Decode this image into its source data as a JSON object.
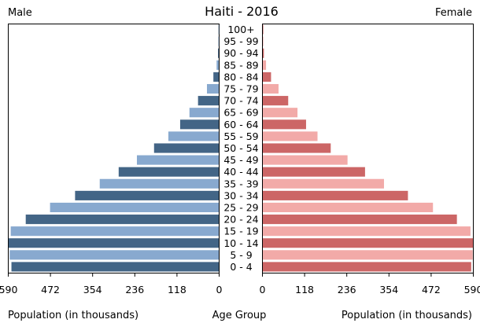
{
  "chart_data": {
    "type": "bar",
    "orientation": "horizontal-pyramid",
    "title": "Haiti - 2016",
    "left_header": "Male",
    "right_header": "Female",
    "xlabel_left": "Population (in thousands)",
    "xlabel_center": "Age Group",
    "xlabel_right": "Population (in thousands)",
    "xlim": [
      0,
      590
    ],
    "ticks": [
      0,
      118,
      236,
      354,
      472,
      590
    ],
    "categories": [
      "0 - 4",
      "5 - 9",
      "10 - 14",
      "15 - 19",
      "20 - 24",
      "25 - 29",
      "30 - 34",
      "35 - 39",
      "40 - 44",
      "45 - 49",
      "50 - 54",
      "55 - 59",
      "60 - 64",
      "65 - 69",
      "70 - 74",
      "75 - 79",
      "80 - 84",
      "85 - 89",
      "90 - 94",
      "95 - 99",
      "100+"
    ],
    "series": [
      {
        "name": "Male",
        "values": [
          580,
          585,
          588,
          582,
          540,
          472,
          402,
          333,
          280,
          229,
          181,
          141,
          108,
          82,
          58,
          33,
          15,
          6,
          2,
          1,
          0.5
        ]
      },
      {
        "name": "Female",
        "values": [
          583,
          587,
          588,
          581,
          543,
          476,
          406,
          339,
          286,
          237,
          190,
          153,
          121,
          97,
          71,
          44,
          23,
          9,
          3,
          1,
          0.5
        ]
      }
    ],
    "colors": {
      "male_dark": "#436586",
      "male_light": "#88a9cf",
      "female_dark": "#cc6666",
      "female_light": "#f2aaa8"
    },
    "grid": false
  }
}
